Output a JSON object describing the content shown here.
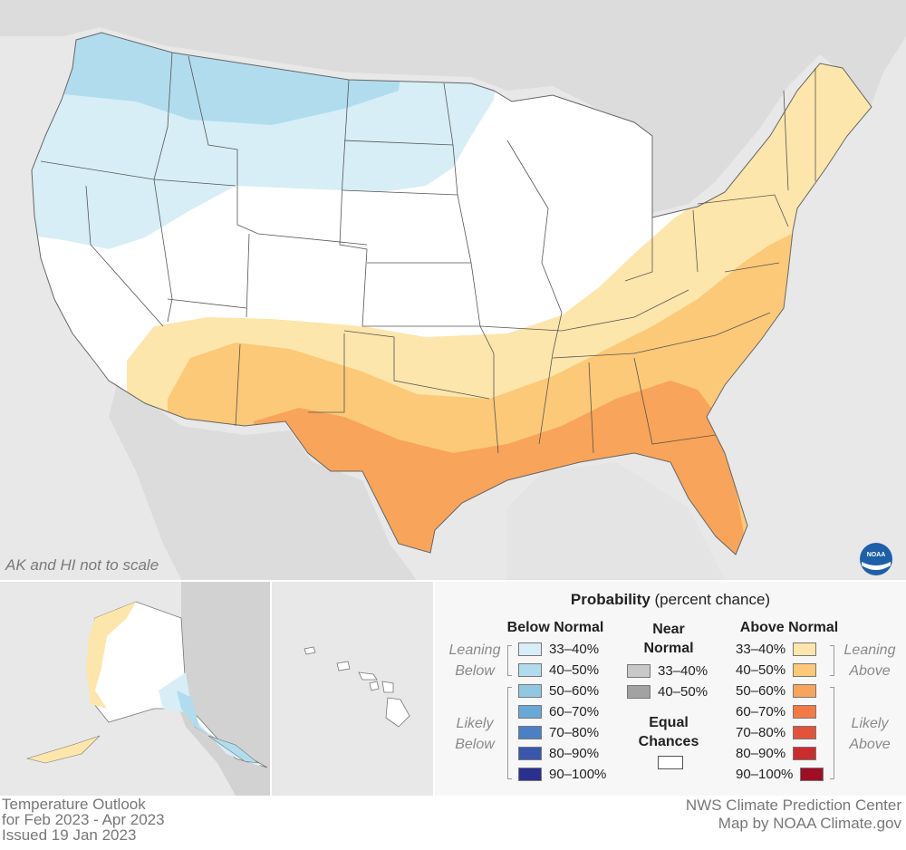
{
  "map_note": "AK and HI not to scale",
  "logo_text": "NOAA",
  "legend": {
    "title_bold": "Probability",
    "title_rest": " (percent chance)",
    "below_header": "Below Normal",
    "near_header": "Near Normal",
    "above_header": "Above Normal",
    "equal_header": "Equal Chances",
    "leaning_below": "Leaning Below",
    "likely_below": "Likely Below",
    "leaning_above": "Leaning Above",
    "likely_above": "Likely Above",
    "below": [
      {
        "label": "33–40%",
        "color": "#d7eef6"
      },
      {
        "label": "40–50%",
        "color": "#b1dcee"
      },
      {
        "label": "50–60%",
        "color": "#90c7e2"
      },
      {
        "label": "60–70%",
        "color": "#6aa8d6"
      },
      {
        "label": "70–80%",
        "color": "#4b81c4"
      },
      {
        "label": "80–90%",
        "color": "#3a57ae"
      },
      {
        "label": "90–100%",
        "color": "#2b2f8d"
      }
    ],
    "near": [
      {
        "label": "33–40%",
        "color": "#c8c8c8"
      },
      {
        "label": "40–50%",
        "color": "#a2a2a2"
      }
    ],
    "above": [
      {
        "label": "33–40%",
        "color": "#fde6ab"
      },
      {
        "label": "40–50%",
        "color": "#fbc978"
      },
      {
        "label": "50–60%",
        "color": "#f8a45a"
      },
      {
        "label": "60–70%",
        "color": "#f27b45"
      },
      {
        "label": "70–80%",
        "color": "#e3533a"
      },
      {
        "label": "80–90%",
        "color": "#c92d2d"
      },
      {
        "label": "90–100%",
        "color": "#9e0f25"
      }
    ],
    "equal_color": "#ffffff"
  },
  "footer": {
    "line1": "Temperature Outlook",
    "line2": "for Feb 2023 - Apr 2023",
    "line3": "Issued 19 Jan 2023",
    "right1": "NWS Climate Prediction Center",
    "right2": "Map by NOAA Climate.gov"
  }
}
